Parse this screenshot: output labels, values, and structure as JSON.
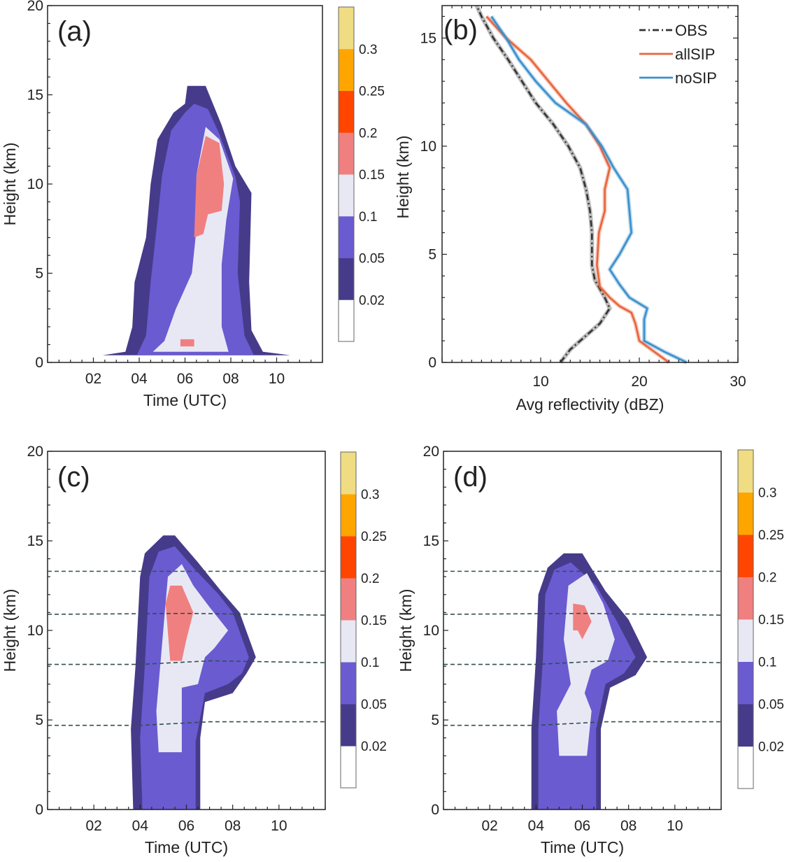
{
  "colorbar": {
    "levels": [
      0.02,
      0.05,
      0.1,
      0.15,
      0.2,
      0.25,
      0.3
    ],
    "tick_labels": [
      "0.02",
      "0.05",
      "0.1",
      "0.15",
      "0.2",
      "0.25",
      "0.3"
    ],
    "colors": [
      "#ffffff",
      "#463b8a",
      "#6a5bd1",
      "#e8e8f5",
      "#f08080",
      "#ff4500",
      "#ffa500",
      "#f0dc82"
    ]
  },
  "chart_data": [
    {
      "panel_label": "(a)",
      "type": "heatmap",
      "xlabel": "Time (UTC)",
      "ylabel": "Height (km)",
      "xticks": [
        "02",
        "04",
        "06",
        "08",
        "10"
      ],
      "yticks": [
        "0",
        "5",
        "10",
        "15",
        "20"
      ],
      "xlim_hours": [
        0,
        12
      ],
      "ylim": [
        0,
        20
      ],
      "contours_note": "nested filled regions [level, [[time_h, height_km], ...]]",
      "regions": [
        [
          0.02,
          [
            [
              1.7,
              0.4
            ],
            [
              2.4,
              0.4
            ],
            [
              3.4,
              0.6
            ],
            [
              3.7,
              2
            ],
            [
              3.8,
              4.5
            ],
            [
              4.3,
              7
            ],
            [
              4.5,
              10
            ],
            [
              4.8,
              12.5
            ],
            [
              5.5,
              14
            ],
            [
              6,
              14.5
            ],
            [
              6.1,
              15.5
            ],
            [
              6.9,
              15.5
            ],
            [
              7.6,
              13.3
            ],
            [
              8.2,
              11
            ],
            [
              8.9,
              9.5
            ],
            [
              8.8,
              4.5
            ],
            [
              8.9,
              1.8
            ],
            [
              9.4,
              0.6
            ],
            [
              10.6,
              0.4
            ],
            [
              10.6,
              0.4
            ]
          ]
        ],
        [
          0.05,
          [
            [
              3.9,
              0.4
            ],
            [
              4.3,
              1.5
            ],
            [
              4.5,
              4.5
            ],
            [
              4.8,
              8
            ],
            [
              5,
              10.5
            ],
            [
              5.4,
              13
            ],
            [
              6,
              14
            ],
            [
              6.4,
              14.5
            ],
            [
              7,
              14.2
            ],
            [
              7.5,
              12.8
            ],
            [
              8.2,
              10.4
            ],
            [
              8.4,
              9
            ],
            [
              8.3,
              5
            ],
            [
              8.6,
              1.5
            ],
            [
              9,
              0.4
            ]
          ]
        ],
        [
          0.1,
          [
            [
              4.6,
              0.6
            ],
            [
              5.1,
              1.2
            ],
            [
              5.6,
              3
            ],
            [
              6.3,
              5
            ],
            [
              6.5,
              7.5
            ],
            [
              6.5,
              10.5
            ],
            [
              6.9,
              13.2
            ],
            [
              7.5,
              12.5
            ],
            [
              8.1,
              10.3
            ],
            [
              7.8,
              8
            ],
            [
              7.6,
              5.5
            ],
            [
              7.6,
              2
            ],
            [
              7.9,
              0.6
            ]
          ]
        ],
        [
          0.15,
          [
            [
              6.4,
              7
            ],
            [
              6.5,
              10.5
            ],
            [
              6.9,
              12.7
            ],
            [
              7.5,
              12.3
            ],
            [
              7.7,
              10
            ],
            [
              7.6,
              8.5
            ],
            [
              7,
              8.3
            ],
            [
              6.8,
              7.2
            ]
          ]
        ],
        [
          0.15,
          [
            [
              5.8,
              0.9
            ],
            [
              6.4,
              0.9
            ],
            [
              6.4,
              1.3
            ],
            [
              5.8,
              1.3
            ]
          ]
        ]
      ]
    },
    {
      "panel_label": "(b)",
      "type": "line",
      "xlabel": "Avg reflectivity (dBZ)",
      "ylabel": "Height (km)",
      "xticks": [
        "10",
        "20",
        "30"
      ],
      "yticks": [
        "0",
        "5",
        "10",
        "15"
      ],
      "xlim": [
        0,
        30
      ],
      "ylim": [
        0,
        16.5
      ],
      "series": [
        {
          "name": "OBS",
          "color": "#333333",
          "points": [
            [
              12,
              0
            ],
            [
              13,
              0.6
            ],
            [
              14.5,
              1.2
            ],
            [
              16,
              1.8
            ],
            [
              17,
              2.5
            ],
            [
              16.5,
              3
            ],
            [
              15.5,
              3.8
            ],
            [
              15.2,
              4.5
            ],
            [
              15.2,
              6
            ],
            [
              15,
              7
            ],
            [
              14.6,
              8
            ],
            [
              14,
              9
            ],
            [
              12.8,
              10
            ],
            [
              11.3,
              11
            ],
            [
              9.5,
              12
            ],
            [
              8.1,
              13
            ],
            [
              6.7,
              14
            ],
            [
              5.2,
              15
            ],
            [
              4,
              16
            ],
            [
              3.5,
              16.5
            ]
          ]
        },
        {
          "name": "allSIP",
          "color": "#e8643c",
          "points": [
            [
              23,
              0
            ],
            [
              21.5,
              0.5
            ],
            [
              20,
              1
            ],
            [
              19.6,
              1.8
            ],
            [
              19.2,
              2.3
            ],
            [
              18,
              2.6
            ],
            [
              17,
              3
            ],
            [
              16,
              3.5
            ],
            [
              15.7,
              4.5
            ],
            [
              15.9,
              6
            ],
            [
              16.5,
              7
            ],
            [
              16.5,
              8
            ],
            [
              17,
              9
            ],
            [
              16,
              10
            ],
            [
              14.6,
              11
            ],
            [
              12.6,
              12
            ],
            [
              10.8,
              13
            ],
            [
              9,
              14
            ],
            [
              6.5,
              15
            ],
            [
              4.5,
              16
            ]
          ]
        },
        {
          "name": "noSIP",
          "color": "#3a8fcc",
          "points": [
            [
              24.8,
              0
            ],
            [
              22.5,
              0.5
            ],
            [
              20.5,
              1
            ],
            [
              20.5,
              2
            ],
            [
              20.8,
              2.5
            ],
            [
              19,
              3
            ],
            [
              18,
              3.6
            ],
            [
              17,
              4.3
            ],
            [
              18,
              5
            ],
            [
              19.2,
              6
            ],
            [
              19,
              7
            ],
            [
              18.8,
              8
            ],
            [
              17.4,
              9
            ],
            [
              16.2,
              10
            ],
            [
              14.6,
              11
            ],
            [
              11.5,
              12
            ],
            [
              9.5,
              13
            ],
            [
              7.8,
              14
            ],
            [
              6.5,
              15
            ],
            [
              5,
              16
            ]
          ]
        }
      ]
    },
    {
      "panel_label": "(c)",
      "type": "heatmap",
      "xlabel": "Time (UTC)",
      "ylabel": "Height (km)",
      "xticks": [
        "02",
        "04",
        "06",
        "08",
        "10"
      ],
      "yticks": [
        "0",
        "5",
        "10",
        "15",
        "20"
      ],
      "xlim_hours": [
        0,
        12
      ],
      "ylim": [
        0,
        20
      ],
      "regions": [
        [
          0.02,
          [
            [
              3.7,
              0
            ],
            [
              3.6,
              4.5
            ],
            [
              3.8,
              8
            ],
            [
              4,
              13
            ],
            [
              4.2,
              14.3
            ],
            [
              5,
              15.3
            ],
            [
              5.5,
              15.3
            ],
            [
              6.5,
              13.8
            ],
            [
              7.5,
              12.2
            ],
            [
              8.3,
              11
            ],
            [
              9,
              8.5
            ],
            [
              8.6,
              7.6
            ],
            [
              8,
              6.5
            ],
            [
              6.8,
              6
            ],
            [
              6.6,
              4
            ],
            [
              6.6,
              0
            ]
          ]
        ],
        [
          0.05,
          [
            [
              4.1,
              0
            ],
            [
              4,
              4
            ],
            [
              4.2,
              8
            ],
            [
              4.4,
              13
            ],
            [
              4.8,
              14.4
            ],
            [
              5.5,
              14.7
            ],
            [
              6.3,
              13.5
            ],
            [
              7.4,
              12
            ],
            [
              8,
              11
            ],
            [
              8.7,
              8.5
            ],
            [
              8.4,
              7.6
            ],
            [
              7.8,
              7
            ],
            [
              6.8,
              6.5
            ],
            [
              6.4,
              3.8
            ],
            [
              6.4,
              0
            ]
          ]
        ],
        [
          0.1,
          [
            [
              4.8,
              3.2
            ],
            [
              4.7,
              5.5
            ],
            [
              5,
              10
            ],
            [
              5.2,
              13
            ],
            [
              5.8,
              13.7
            ],
            [
              6.3,
              12.5
            ],
            [
              7,
              11.3
            ],
            [
              7.8,
              10
            ],
            [
              7.2,
              9
            ],
            [
              6.8,
              8.5
            ],
            [
              6.5,
              7
            ],
            [
              5.8,
              6.8
            ],
            [
              5.8,
              3.2
            ]
          ]
        ],
        [
          0.15,
          [
            [
              5.1,
              11.5
            ],
            [
              5.3,
              8.3
            ],
            [
              5.8,
              8.3
            ],
            [
              6,
              9.5
            ],
            [
              6.3,
              11
            ],
            [
              5.8,
              12.5
            ],
            [
              5.3,
              12.5
            ]
          ]
        ]
      ],
      "dashed_lines": [
        [
          [
            0,
            4.7
          ],
          [
            4,
            4.7
          ],
          [
            7,
            4.9
          ],
          [
            12,
            4.9
          ]
        ],
        [
          [
            0,
            8.1
          ],
          [
            4,
            8.1
          ],
          [
            7,
            8.3
          ],
          [
            12,
            8.2
          ]
        ],
        [
          [
            0,
            10.9
          ],
          [
            6,
            10.95
          ],
          [
            12,
            10.85
          ]
        ],
        [
          [
            0,
            13.3
          ],
          [
            12,
            13.3
          ]
        ]
      ]
    },
    {
      "panel_label": "(d)",
      "type": "heatmap",
      "xlabel": "Time (UTC)",
      "ylabel": "Height (km)",
      "xticks": [
        "02",
        "04",
        "06",
        "08",
        "10"
      ],
      "yticks": [
        "0",
        "5",
        "10",
        "15",
        "20"
      ],
      "xlim_hours": [
        0,
        12
      ],
      "ylim": [
        0,
        20
      ],
      "regions": [
        [
          0.02,
          [
            [
              3.8,
              0
            ],
            [
              3.8,
              4.5
            ],
            [
              4,
              8.5
            ],
            [
              4.1,
              12
            ],
            [
              4.5,
              13.5
            ],
            [
              5.2,
              14.3
            ],
            [
              6,
              14.3
            ],
            [
              7,
              12.2
            ],
            [
              8,
              10.6
            ],
            [
              8.8,
              8.5
            ],
            [
              8.3,
              7.5
            ],
            [
              7.2,
              6.8
            ],
            [
              6.8,
              4.5
            ],
            [
              6.8,
              0
            ]
          ]
        ],
        [
          0.05,
          [
            [
              4.1,
              0
            ],
            [
              4.1,
              4.5
            ],
            [
              4.3,
              8.5
            ],
            [
              4.4,
              12
            ],
            [
              4.8,
              13.4
            ],
            [
              5.5,
              13.8
            ],
            [
              6.6,
              12.5
            ],
            [
              7.5,
              10.5
            ],
            [
              8.3,
              8.5
            ],
            [
              7.8,
              7.6
            ],
            [
              7,
              7
            ],
            [
              6.6,
              4.5
            ],
            [
              6.6,
              0
            ]
          ]
        ],
        [
          0.1,
          [
            [
              5,
              3
            ],
            [
              4.9,
              5.5
            ],
            [
              5.5,
              7
            ],
            [
              5.2,
              9.5
            ],
            [
              5.4,
              12.5
            ],
            [
              6.2,
              13.2
            ],
            [
              6.9,
              11.5
            ],
            [
              7.4,
              9.5
            ],
            [
              7.1,
              8.3
            ],
            [
              6.4,
              7.8
            ],
            [
              6.1,
              6.5
            ],
            [
              6.4,
              5.5
            ],
            [
              6.2,
              3
            ]
          ]
        ],
        [
          0.15,
          [
            [
              5.6,
              10
            ],
            [
              5.6,
              11.5
            ],
            [
              6.1,
              11.4
            ],
            [
              6.4,
              10.5
            ],
            [
              6,
              9.5
            ],
            [
              5.8,
              10
            ]
          ]
        ]
      ],
      "dashed_lines": [
        [
          [
            0,
            4.7
          ],
          [
            4,
            4.7
          ],
          [
            7,
            4.9
          ],
          [
            12,
            4.9
          ]
        ],
        [
          [
            0,
            8.1
          ],
          [
            4,
            8.1
          ],
          [
            7,
            8.3
          ],
          [
            12,
            8.2
          ]
        ],
        [
          [
            0,
            10.9
          ],
          [
            6,
            10.95
          ],
          [
            12,
            10.85
          ]
        ],
        [
          [
            0,
            13.3
          ],
          [
            12,
            13.3
          ]
        ]
      ]
    }
  ]
}
